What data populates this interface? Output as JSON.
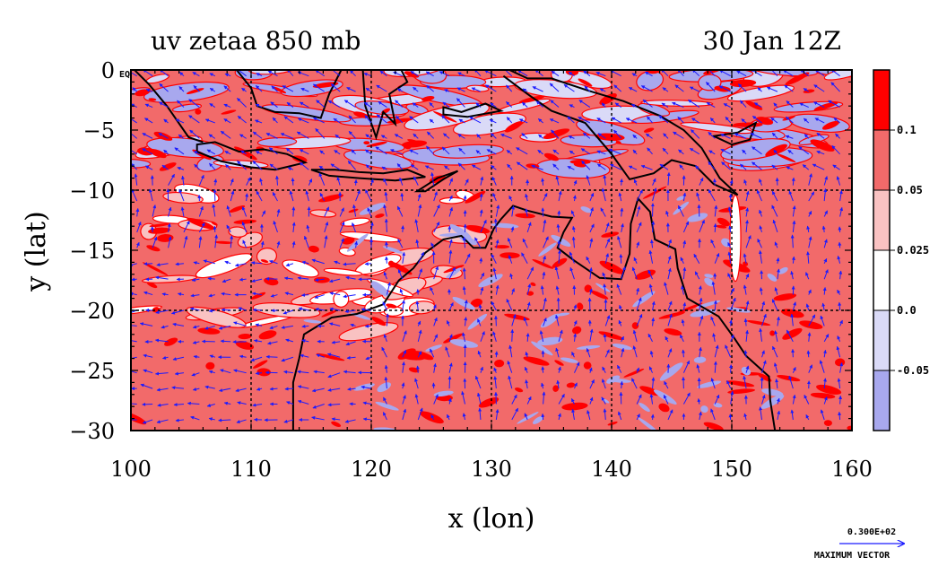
{
  "chart_data": {
    "type": "heatmap",
    "title": "uv zetaa 850 mb",
    "time_label": "30 Jan 12Z",
    "xlabel": "x (lon)",
    "ylabel": "y (lat)",
    "xlim": [
      100,
      160
    ],
    "ylim": [
      -30,
      0
    ],
    "x_ticks": [
      100,
      110,
      120,
      130,
      140,
      150,
      160
    ],
    "y_ticks": [
      0,
      -5,
      -10,
      -15,
      -20,
      -25,
      -30
    ],
    "x_tick_labels": [
      "100",
      "110",
      "120",
      "130",
      "140",
      "150",
      "160"
    ],
    "y_tick_labels": [
      "0",
      "−5",
      "−10",
      "−15",
      "−20",
      "−25",
      "−30"
    ],
    "equator_label": "EQ",
    "grid": true,
    "grid_x": [
      110,
      120,
      130,
      140,
      150
    ],
    "grid_y": [
      -10,
      -20
    ],
    "colorbar": {
      "levels": [
        "0.1",
        "0.05",
        "0.025",
        "0.0",
        "-0.05"
      ],
      "bins": [
        {
          "range": [
            0.1,
            null
          ],
          "color": "#ff0000"
        },
        {
          "range": [
            0.05,
            0.1
          ],
          "color": "#f26a6a"
        },
        {
          "range": [
            0.025,
            0.05
          ],
          "color": "#f9c2c2"
        },
        {
          "range": [
            0.0,
            0.025
          ],
          "color": "#ffffff"
        },
        {
          "range": [
            -0.05,
            0.0
          ],
          "color": "#dadaf7"
        },
        {
          "range": [
            null,
            -0.05
          ],
          "color": "#a8a8ee"
        }
      ]
    },
    "vector_key": {
      "value": "0.300E+02",
      "label": "MAXIMUM VECTOR"
    },
    "colors": {
      "positive_strong": "#ff0000",
      "positive": "#f26a6a",
      "positive_weak": "#f9c2c2",
      "negative_weak": "#dadaf7",
      "negative": "#a8a8ee",
      "contour": "#ff0000",
      "vectors": "#1a1aff",
      "coastline": "#000000"
    }
  }
}
